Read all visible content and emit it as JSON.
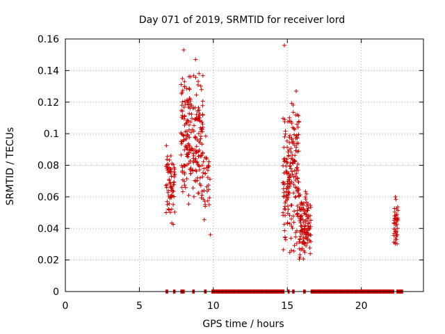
{
  "chart_data": {
    "type": "scatter",
    "title": "Day 071 of 2019, SRMTID for receiver lord",
    "xlabel": "GPS time / hours",
    "ylabel": "SRMTID / TECUs",
    "xlim": [
      0,
      24.2
    ],
    "ylim": [
      0,
      0.16
    ],
    "xticks": [
      0,
      5,
      10,
      15,
      20
    ],
    "xtick_labels": [
      "0",
      "5",
      "10",
      "15",
      "20"
    ],
    "yticks": [
      0,
      0.02,
      0.04,
      0.06,
      0.08,
      0.1,
      0.12,
      0.14,
      0.16
    ],
    "ytick_labels": [
      "0",
      "0.02",
      "0.04",
      "0.06",
      "0.08",
      "0.1",
      "0.12",
      "0.14",
      "0.16"
    ],
    "grid": true,
    "marker": "+",
    "marker_color": "#cc0000",
    "series": [
      {
        "name": "SRMTID",
        "clusters": [
          {
            "x_range": [
              6.8,
              7.4
            ],
            "y_range": [
              0.04,
              0.095
            ],
            "count": 70
          },
          {
            "x_range": [
              7.8,
              8.5
            ],
            "y_range": [
              0.05,
              0.153
            ],
            "count": 110
          },
          {
            "x_range": [
              8.5,
              9.3
            ],
            "y_range": [
              0.05,
              0.145
            ],
            "count": 110
          },
          {
            "x_range": [
              9.3,
              9.8
            ],
            "y_range": [
              0.036,
              0.11
            ],
            "count": 30
          },
          {
            "x_range": [
              14.7,
              15.2
            ],
            "y_range": [
              0.022,
              0.125
            ],
            "count": 90
          },
          {
            "x_range": [
              15.2,
              15.8
            ],
            "y_range": [
              0.016,
              0.128
            ],
            "count": 110
          },
          {
            "x_range": [
              15.8,
              16.6
            ],
            "y_range": [
              0.016,
              0.065
            ],
            "count": 120
          },
          {
            "x_range": [
              22.2,
              22.5
            ],
            "y_range": [
              0.022,
              0.06
            ],
            "count": 40
          }
        ],
        "highlights": [
          {
            "x": 14.8,
            "y": 0.156
          },
          {
            "x": 8.0,
            "y": 0.153
          },
          {
            "x": 8.8,
            "y": 0.147
          },
          {
            "x": 15.6,
            "y": 0.127
          },
          {
            "x": 22.3,
            "y": 0.06
          },
          {
            "x": 9.8,
            "y": 0.036
          }
        ],
        "zero_runs": [
          [
            6.8,
            6.95
          ],
          [
            7.3,
            7.45
          ],
          [
            7.8,
            8.05
          ],
          [
            8.6,
            8.75
          ],
          [
            9.4,
            9.55
          ],
          [
            9.9,
            14.8
          ],
          [
            15.05,
            15.15
          ],
          [
            15.35,
            15.5
          ],
          [
            16.1,
            16.25
          ],
          [
            16.6,
            22.2
          ],
          [
            22.4,
            22.8
          ]
        ]
      }
    ]
  }
}
